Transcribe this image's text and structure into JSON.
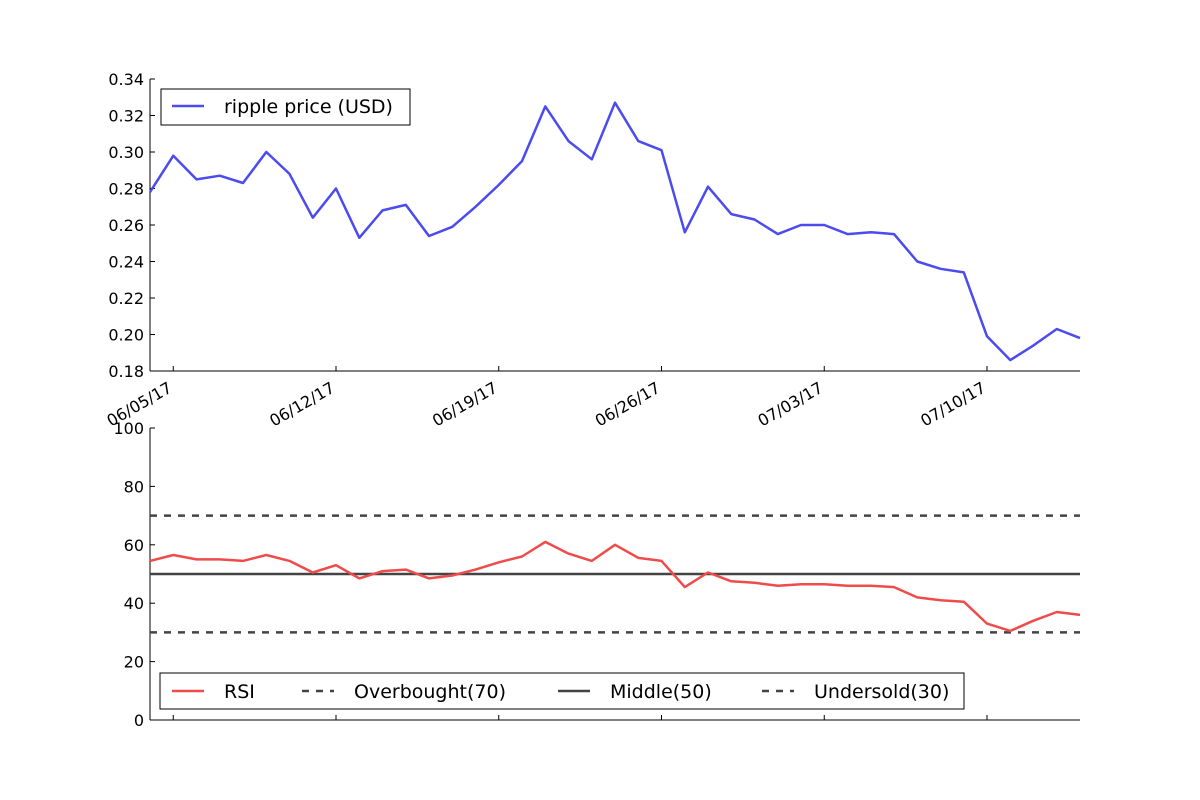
{
  "chart_data": [
    {
      "type": "line",
      "title": "",
      "xlabel": "",
      "ylabel": "",
      "ylim": [
        0.18,
        0.34
      ],
      "y_ticks": [
        "0.18",
        "0.20",
        "0.22",
        "0.24",
        "0.26",
        "0.28",
        "0.30",
        "0.32",
        "0.34"
      ],
      "x_tick_labels": [
        "06/05/17",
        "06/12/17",
        "06/19/17",
        "06/26/17",
        "07/03/17",
        "07/10/17"
      ],
      "x_range": [
        "2017-06-04",
        "2017-07-14"
      ],
      "legend_position": "top-left",
      "grid": false,
      "series": [
        {
          "name": "ripple price (USD)",
          "color": "#4b4bf0",
          "x": [
            "2017-06-04",
            "2017-06-05",
            "2017-06-06",
            "2017-06-07",
            "2017-06-08",
            "2017-06-09",
            "2017-06-10",
            "2017-06-11",
            "2017-06-12",
            "2017-06-13",
            "2017-06-14",
            "2017-06-15",
            "2017-06-16",
            "2017-06-17",
            "2017-06-18",
            "2017-06-19",
            "2017-06-20",
            "2017-06-21",
            "2017-06-22",
            "2017-06-23",
            "2017-06-24",
            "2017-06-25",
            "2017-06-26",
            "2017-06-27",
            "2017-06-28",
            "2017-06-29",
            "2017-06-30",
            "2017-07-01",
            "2017-07-02",
            "2017-07-03",
            "2017-07-04",
            "2017-07-05",
            "2017-07-06",
            "2017-07-07",
            "2017-07-08",
            "2017-07-09",
            "2017-07-10",
            "2017-07-11",
            "2017-07-12",
            "2017-07-13",
            "2017-07-14"
          ],
          "values": [
            0.278,
            0.298,
            0.285,
            0.287,
            0.283,
            0.3,
            0.288,
            0.264,
            0.28,
            0.253,
            0.268,
            0.271,
            0.254,
            0.259,
            0.27,
            0.282,
            0.295,
            0.325,
            0.306,
            0.296,
            0.327,
            0.306,
            0.301,
            0.256,
            0.281,
            0.266,
            0.263,
            0.255,
            0.26,
            0.26,
            0.255,
            0.256,
            0.255,
            0.24,
            0.236,
            0.234,
            0.199,
            0.186,
            0.194,
            0.203,
            0.198
          ]
        }
      ]
    },
    {
      "type": "line",
      "title": "",
      "xlabel": "",
      "ylabel": "",
      "ylim": [
        0,
        100
      ],
      "y_ticks": [
        "0",
        "20",
        "40",
        "60",
        "80",
        "100"
      ],
      "x_range": [
        "2017-06-04",
        "2017-07-14"
      ],
      "legend_position": "bottom-left",
      "grid": false,
      "series": [
        {
          "name": "RSI",
          "color": "#f04b4b",
          "x": [
            "2017-06-04",
            "2017-06-05",
            "2017-06-06",
            "2017-06-07",
            "2017-06-08",
            "2017-06-09",
            "2017-06-10",
            "2017-06-11",
            "2017-06-12",
            "2017-06-13",
            "2017-06-14",
            "2017-06-15",
            "2017-06-16",
            "2017-06-17",
            "2017-06-18",
            "2017-06-19",
            "2017-06-20",
            "2017-06-21",
            "2017-06-22",
            "2017-06-23",
            "2017-06-24",
            "2017-06-25",
            "2017-06-26",
            "2017-06-27",
            "2017-06-28",
            "2017-06-29",
            "2017-06-30",
            "2017-07-01",
            "2017-07-02",
            "2017-07-03",
            "2017-07-04",
            "2017-07-05",
            "2017-07-06",
            "2017-07-07",
            "2017-07-08",
            "2017-07-09",
            "2017-07-10",
            "2017-07-11",
            "2017-07-12",
            "2017-07-13",
            "2017-07-14"
          ],
          "values": [
            54.5,
            56.5,
            55,
            55,
            54.5,
            56.5,
            54.5,
            50.5,
            53,
            48.5,
            51,
            51.5,
            48.5,
            49.5,
            51.5,
            54,
            56,
            61,
            57,
            54.5,
            60,
            55.5,
            54.5,
            45.5,
            50.5,
            47.5,
            47,
            46,
            46.5,
            46.5,
            46,
            46,
            45.5,
            42,
            41,
            40.5,
            33,
            30.5,
            34,
            37,
            36
          ]
        },
        {
          "name": "Overbought(70)",
          "color": "#444444",
          "style": "dashed",
          "value": 70
        },
        {
          "name": "Middle(50)",
          "color": "#444444",
          "style": "solid",
          "value": 50
        },
        {
          "name": "Undersold(30)",
          "color": "#444444",
          "style": "dashed",
          "value": 30
        }
      ]
    }
  ]
}
